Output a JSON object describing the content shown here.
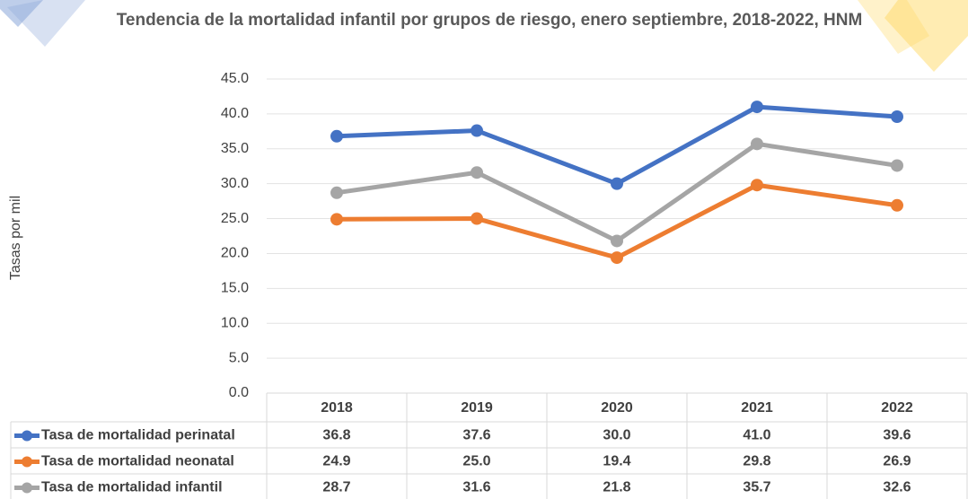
{
  "chart_data": {
    "type": "line",
    "title": "Tendencia de la mortalidad infantil por grupos de riesgo, enero septiembre, 2018-2022, HNM",
    "y_label": "Tasas por mil",
    "categories": [
      "2018",
      "2019",
      "2020",
      "2021",
      "2022"
    ],
    "series": [
      {
        "name": "Tasa de mortalidad perinatal",
        "color": "#4472c4",
        "values": [
          36.8,
          37.6,
          30,
          41,
          39.6
        ],
        "value_labels": [
          "36.8",
          "37.6",
          "30.0",
          "41.0",
          "39.6"
        ]
      },
      {
        "name": "Tasa de mortalidad neonatal",
        "color": "#ed7d31",
        "values": [
          24.9,
          25,
          19.4,
          29.8,
          26.9
        ],
        "value_labels": [
          "24.9",
          "25.0",
          "19.4",
          "29.8",
          "26.9"
        ]
      },
      {
        "name": "Tasa de mortalidad infantil",
        "color": "#a5a5a5",
        "values": [
          28.7,
          31.6,
          21.8,
          35.7,
          32.6
        ],
        "value_labels": [
          "28.7",
          "31.6",
          "21.8",
          "35.7",
          "32.6"
        ]
      }
    ],
    "ylim": [
      0,
      45
    ],
    "yticks": [
      {
        "value": 0,
        "label": "0.0"
      },
      {
        "value": 5,
        "label": "5.0"
      },
      {
        "value": 10,
        "label": "10.0"
      },
      {
        "value": 15,
        "label": "15.0"
      },
      {
        "value": 20,
        "label": "20.0"
      },
      {
        "value": 25,
        "label": "25.0"
      },
      {
        "value": 30,
        "label": "30.0"
      },
      {
        "value": 35,
        "label": "35.0"
      },
      {
        "value": 40,
        "label": "40.0"
      },
      {
        "value": 45,
        "label": "45.0"
      }
    ],
    "grid": true
  }
}
